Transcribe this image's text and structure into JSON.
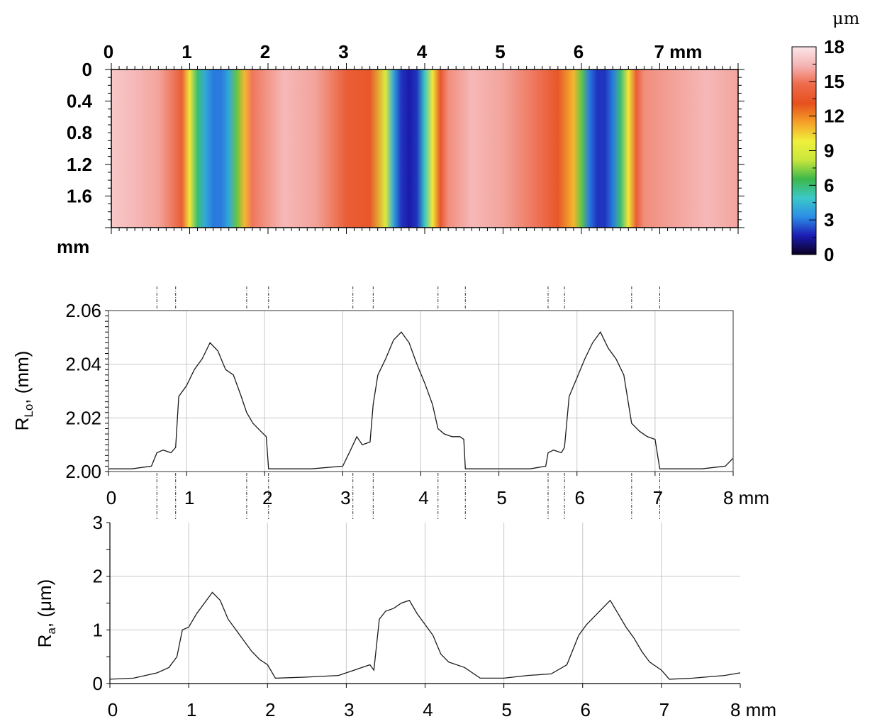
{
  "chart_data": [
    {
      "type": "heatmap",
      "x_ticks": [
        "0",
        "1",
        "2",
        "3",
        "4",
        "5",
        "6",
        "7 mm"
      ],
      "x_tick_values": [
        0,
        1,
        2,
        3,
        4,
        5,
        6,
        7
      ],
      "xlim": [
        0,
        8
      ],
      "y_ticks": [
        "0",
        "0.4",
        "0.8",
        "1.2",
        "1.6"
      ],
      "y_tick_values": [
        0,
        0.4,
        0.8,
        1.2,
        1.6
      ],
      "ylim": [
        0,
        2
      ],
      "ylabel": "mm",
      "colorbar": {
        "unit": "μm",
        "ticks": [
          "18",
          "15",
          "12",
          "9",
          "6",
          "3",
          "0"
        ],
        "tick_values": [
          18,
          15,
          12,
          9,
          6,
          3,
          0
        ],
        "range": [
          0,
          18
        ],
        "colors": [
          "#0a0020",
          "#1c1cb4",
          "#2c8ee6",
          "#3cc8c8",
          "#3cb84a",
          "#c8e63c",
          "#f0f03c",
          "#f5a028",
          "#e6501e",
          "#ee6a4a",
          "#f5b4b4",
          "#fbe6e8"
        ]
      },
      "depth_profile_along_x": {
        "x": [
          0,
          0.3,
          0.6,
          0.9,
          1.0,
          1.1,
          1.2,
          1.3,
          1.4,
          1.5,
          1.6,
          1.7,
          1.8,
          2.2,
          2.6,
          3.0,
          3.3,
          3.5,
          3.6,
          3.7,
          3.8,
          3.9,
          4.0,
          4.1,
          4.2,
          4.3,
          4.6,
          5.0,
          5.4,
          5.7,
          5.9,
          6.0,
          6.1,
          6.2,
          6.3,
          6.4,
          6.5,
          6.6,
          6.7,
          6.8,
          7.2,
          7.6,
          8.0
        ],
        "value_um": [
          17,
          16.5,
          16,
          14,
          10,
          6,
          4,
          3,
          3,
          4,
          7,
          11,
          15,
          16.5,
          16,
          14,
          13.5,
          9,
          4,
          2,
          1.5,
          2,
          5,
          10,
          13.5,
          15.5,
          16.5,
          16,
          15,
          13.5,
          11,
          7,
          3,
          2,
          2,
          3,
          6,
          10,
          14,
          15.5,
          16,
          16.5,
          16
        ]
      }
    },
    {
      "type": "line",
      "ylabel_main": "R",
      "ylabel_sub": "Lo",
      "ylabel_rest": ", (mm)",
      "x_ticks": [
        "0",
        "1",
        "2",
        "3",
        "4",
        "5",
        "6",
        "7",
        "8 mm"
      ],
      "x_tick_values": [
        0,
        1,
        2,
        3,
        4,
        5,
        6,
        7,
        8
      ],
      "y_ticks": [
        "2.00",
        "2.02",
        "2.04",
        "2.06"
      ],
      "y_tick_values": [
        2.0,
        2.02,
        2.04,
        2.06
      ],
      "xlim": [
        0,
        8
      ],
      "ylim": [
        2.0,
        2.06
      ],
      "grid": true,
      "boundary_markers_x": [
        0.62,
        0.86,
        1.77,
        2.05,
        3.13,
        3.39,
        4.22,
        4.57,
        5.63,
        5.84,
        6.7,
        7.06
      ],
      "series": [
        {
          "x": [
            0,
            0.3,
            0.55,
            0.62,
            0.7,
            0.8,
            0.86,
            0.9,
            1.0,
            1.1,
            1.2,
            1.3,
            1.4,
            1.5,
            1.6,
            1.7,
            1.77,
            1.85,
            1.95,
            2.02,
            2.05,
            2.2,
            2.6,
            3.0,
            3.1,
            3.18,
            3.25,
            3.35,
            3.39,
            3.45,
            3.55,
            3.65,
            3.75,
            3.85,
            3.95,
            4.05,
            4.15,
            4.22,
            4.3,
            4.4,
            4.5,
            4.55,
            4.57,
            4.7,
            5.0,
            5.4,
            5.6,
            5.63,
            5.7,
            5.8,
            5.84,
            5.9,
            6.0,
            6.1,
            6.2,
            6.3,
            6.4,
            6.5,
            6.6,
            6.7,
            6.8,
            6.9,
            7.0,
            7.06,
            7.2,
            7.6,
            7.9,
            8.0
          ],
          "y": [
            2.001,
            2.001,
            2.002,
            2.007,
            2.008,
            2.007,
            2.009,
            2.028,
            2.032,
            2.038,
            2.042,
            2.048,
            2.045,
            2.038,
            2.036,
            2.028,
            2.022,
            2.018,
            2.015,
            2.013,
            2.001,
            2.001,
            2.001,
            2.002,
            2.008,
            2.013,
            2.01,
            2.011,
            2.025,
            2.036,
            2.042,
            2.049,
            2.052,
            2.048,
            2.04,
            2.033,
            2.025,
            2.016,
            2.014,
            2.013,
            2.013,
            2.012,
            2.001,
            2.001,
            2.001,
            2.001,
            2.002,
            2.007,
            2.008,
            2.007,
            2.009,
            2.028,
            2.035,
            2.042,
            2.048,
            2.052,
            2.046,
            2.042,
            2.036,
            2.018,
            2.015,
            2.013,
            2.012,
            2.001,
            2.001,
            2.001,
            2.002,
            2.005
          ]
        }
      ]
    },
    {
      "type": "line",
      "ylabel_main": "R",
      "ylabel_sub": "a",
      "ylabel_rest": ", (μm)",
      "x_ticks": [
        "0",
        "1",
        "2",
        "3",
        "4",
        "5",
        "6",
        "7",
        "8 mm"
      ],
      "x_tick_values": [
        0,
        1,
        2,
        3,
        4,
        5,
        6,
        7,
        8
      ],
      "y_ticks": [
        "0",
        "1",
        "2",
        "3"
      ],
      "y_tick_values": [
        0,
        1,
        2,
        3
      ],
      "xlim": [
        0,
        8
      ],
      "ylim": [
        0,
        3
      ],
      "grid": true,
      "series": [
        {
          "x": [
            0,
            0.3,
            0.45,
            0.6,
            0.75,
            0.85,
            0.92,
            1.0,
            1.1,
            1.2,
            1.3,
            1.4,
            1.5,
            1.6,
            1.7,
            1.8,
            1.9,
            2.0,
            2.1,
            2.5,
            2.9,
            3.1,
            3.2,
            3.3,
            3.35,
            3.42,
            3.5,
            3.6,
            3.7,
            3.8,
            3.9,
            4.0,
            4.1,
            4.2,
            4.3,
            4.5,
            4.7,
            5.0,
            5.3,
            5.6,
            5.8,
            5.95,
            6.05,
            6.15,
            6.25,
            6.35,
            6.45,
            6.55,
            6.65,
            6.75,
            6.85,
            7.0,
            7.1,
            7.4,
            7.8,
            8.0
          ],
          "y": [
            0.08,
            0.1,
            0.15,
            0.2,
            0.3,
            0.5,
            1.0,
            1.05,
            1.3,
            1.5,
            1.7,
            1.55,
            1.2,
            1.0,
            0.8,
            0.6,
            0.45,
            0.35,
            0.1,
            0.12,
            0.15,
            0.25,
            0.3,
            0.35,
            0.25,
            1.2,
            1.35,
            1.4,
            1.5,
            1.55,
            1.3,
            1.1,
            0.9,
            0.55,
            0.4,
            0.3,
            0.1,
            0.1,
            0.15,
            0.18,
            0.35,
            0.9,
            1.1,
            1.25,
            1.4,
            1.55,
            1.3,
            1.05,
            0.85,
            0.6,
            0.4,
            0.25,
            0.08,
            0.1,
            0.15,
            0.2
          ]
        }
      ]
    }
  ]
}
